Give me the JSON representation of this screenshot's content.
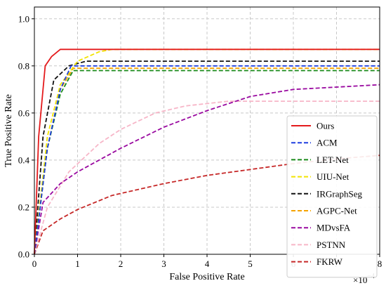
{
  "chart_data": {
    "type": "line",
    "xlabel": "False Positive Rate",
    "ylabel": "True Positive Rate",
    "x_scale_label": "×10",
    "x_scale_exponent": "−4",
    "xlim": [
      0,
      8
    ],
    "ylim": [
      0,
      1.05
    ],
    "xticks": [
      0,
      1,
      2,
      3,
      4,
      5,
      6,
      7,
      8
    ],
    "xtick_labels": [
      "0",
      "1",
      "2",
      "3",
      "4",
      "5",
      "6",
      "7",
      "8"
    ],
    "yticks": [
      0,
      0.2,
      0.4,
      0.6,
      0.8,
      1.0
    ],
    "ytick_labels": [
      "0.0",
      "0.2",
      "0.4",
      "0.6",
      "0.8",
      "1.0"
    ],
    "grid": true,
    "legend_position": "lower-right",
    "series": [
      {
        "name": "Ours",
        "color": "#e41a1c",
        "dash": "solid",
        "points": [
          [
            0,
            0
          ],
          [
            0.1,
            0.5
          ],
          [
            0.25,
            0.8
          ],
          [
            0.4,
            0.84
          ],
          [
            0.6,
            0.87
          ],
          [
            1.0,
            0.87
          ],
          [
            8.0,
            0.87
          ]
        ]
      },
      {
        "name": "ACM",
        "color": "#1f3fe0",
        "dash": "dashed",
        "points": [
          [
            0,
            0
          ],
          [
            0.3,
            0.45
          ],
          [
            0.6,
            0.7
          ],
          [
            0.85,
            0.8
          ],
          [
            8.0,
            0.8
          ]
        ]
      },
      {
        "name": "LET-Net",
        "color": "#1a8a1a",
        "dash": "dashed",
        "points": [
          [
            0,
            0
          ],
          [
            0.3,
            0.45
          ],
          [
            0.6,
            0.68
          ],
          [
            0.9,
            0.78
          ],
          [
            8.0,
            0.78
          ]
        ]
      },
      {
        "name": "UIU-Net",
        "color": "#f2e400",
        "dash": "dashed",
        "points": [
          [
            0,
            0
          ],
          [
            0.3,
            0.5
          ],
          [
            0.6,
            0.72
          ],
          [
            1.0,
            0.82
          ],
          [
            1.5,
            0.86
          ],
          [
            1.8,
            0.87
          ],
          [
            8.0,
            0.87
          ]
        ]
      },
      {
        "name": "IRGraphSeg",
        "color": "#111111",
        "dash": "dashed",
        "points": [
          [
            0,
            0
          ],
          [
            0.2,
            0.5
          ],
          [
            0.45,
            0.74
          ],
          [
            0.8,
            0.8
          ],
          [
            1.2,
            0.82
          ],
          [
            8.0,
            0.82
          ]
        ]
      },
      {
        "name": "AGPC-Net",
        "color": "#f5a300",
        "dash": "dashed",
        "points": [
          [
            0,
            0
          ],
          [
            0.3,
            0.45
          ],
          [
            0.6,
            0.7
          ],
          [
            0.9,
            0.79
          ],
          [
            8.0,
            0.79
          ]
        ]
      },
      {
        "name": "MDvsFA",
        "color": "#9a0aa0",
        "dash": "dashed",
        "points": [
          [
            0,
            0
          ],
          [
            0.2,
            0.22
          ],
          [
            0.6,
            0.3
          ],
          [
            1.0,
            0.35
          ],
          [
            2.0,
            0.45
          ],
          [
            3.0,
            0.54
          ],
          [
            4.0,
            0.61
          ],
          [
            5.0,
            0.67
          ],
          [
            6.0,
            0.7
          ],
          [
            7.0,
            0.71
          ],
          [
            8.0,
            0.72
          ]
        ]
      },
      {
        "name": "PSTNN",
        "color": "#f7b6c8",
        "dash": "dashed",
        "points": [
          [
            0,
            0
          ],
          [
            0.3,
            0.2
          ],
          [
            0.8,
            0.35
          ],
          [
            1.5,
            0.47
          ],
          [
            2.0,
            0.53
          ],
          [
            2.8,
            0.6
          ],
          [
            3.5,
            0.63
          ],
          [
            4.5,
            0.65
          ],
          [
            8.0,
            0.65
          ]
        ]
      },
      {
        "name": "FKRW",
        "color": "#c62828",
        "dash": "dashed",
        "points": [
          [
            0,
            0
          ],
          [
            0.2,
            0.1
          ],
          [
            0.6,
            0.15
          ],
          [
            1.0,
            0.19
          ],
          [
            1.8,
            0.25
          ],
          [
            3.0,
            0.3
          ],
          [
            4.0,
            0.335
          ],
          [
            5.0,
            0.36
          ],
          [
            6.0,
            0.385
          ],
          [
            7.0,
            0.405
          ],
          [
            8.0,
            0.42
          ]
        ]
      }
    ]
  }
}
